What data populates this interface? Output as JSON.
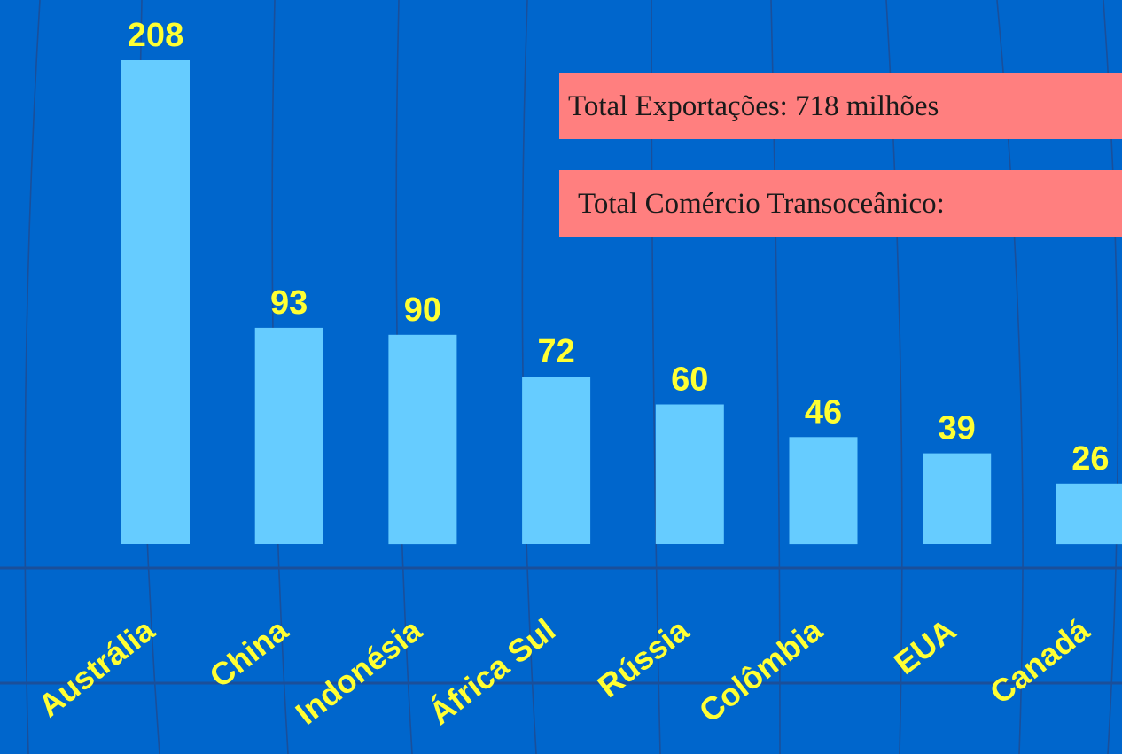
{
  "chart_data": {
    "type": "bar",
    "categories": [
      "Austrália",
      "China",
      "Indonésia",
      "África Sul",
      "Rússia",
      "Colômbia",
      "EUA",
      "Canadá"
    ],
    "values": [
      208,
      93,
      90,
      72,
      60,
      46,
      39,
      26
    ],
    "data_labels": [
      "208",
      "93",
      "90",
      "72",
      "60",
      "46",
      "39",
      "26"
    ],
    "title": "",
    "xlabel": "",
    "ylabel": "",
    "ylim": [
      0,
      208
    ],
    "grid": false,
    "legend": "none",
    "annotations": [
      "Total Exportações: 718  milhões",
      "Total Comércio Transoceânico:"
    ]
  },
  "colors": {
    "background": "#0066CC",
    "bar": "#66CCFF",
    "label": "#FFFF33",
    "annotation_box": "#FF7F7F",
    "annotation_text": "#1a1a1a",
    "grid": "#1a4f9a"
  }
}
